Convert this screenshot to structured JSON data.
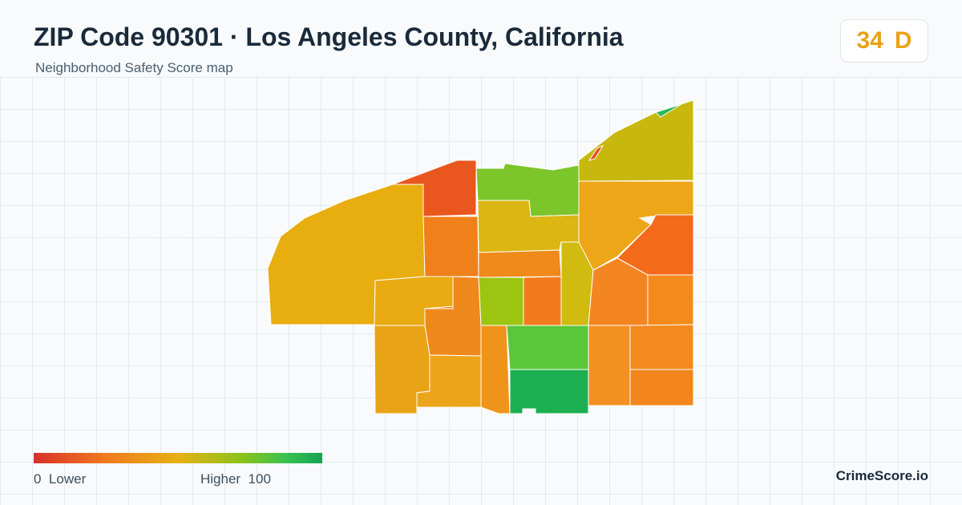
{
  "header": {
    "title": "ZIP Code 90301 · Los Angeles County, California",
    "subtitle": "Neighborhood Safety Score map"
  },
  "score_badge": {
    "score": "34",
    "grade": "D",
    "color": "#e8a21a"
  },
  "legend": {
    "low_value": "0",
    "low_label": "Lower",
    "high_label": "Higher",
    "high_value": "100",
    "gradient_colors": [
      "#d7302a",
      "#f07b1d",
      "#e6b015",
      "#8cc21c",
      "#35c151",
      "#18a253"
    ]
  },
  "brand": "CrimeScore.io"
}
